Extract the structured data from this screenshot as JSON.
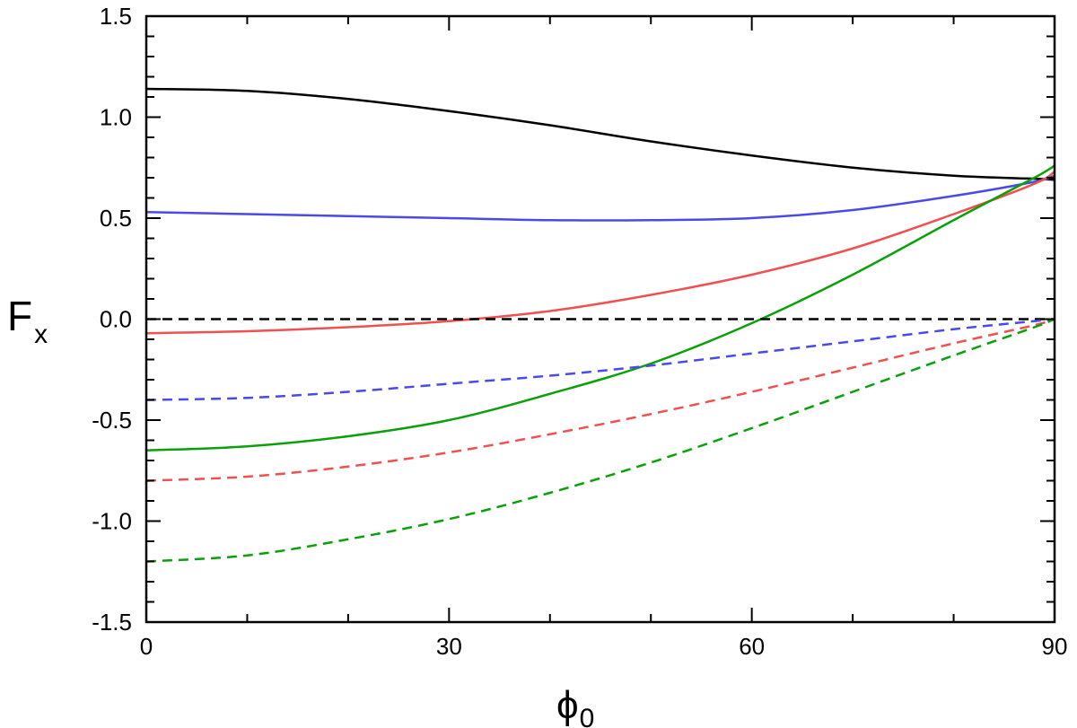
{
  "chart_data": {
    "type": "line",
    "title": "",
    "xlabel": "ϕ",
    "xlabel_sub": "0",
    "ylabel": "F",
    "ylabel_sub": "x",
    "xlim": [
      0,
      90
    ],
    "ylim": [
      -1.5,
      1.5
    ],
    "xticks": [
      0,
      30,
      60,
      90
    ],
    "xtick_labels": [
      "0",
      "30",
      "60",
      "90"
    ],
    "yticks": [
      -1.5,
      -1.0,
      -0.5,
      0.0,
      0.5,
      1.0,
      1.5
    ],
    "ytick_labels": [
      "-1.5",
      "-1.0",
      "-0.5",
      "0.0",
      "0.5",
      "1.0",
      "1.5"
    ],
    "grid": false,
    "x": [
      0,
      10,
      20,
      30,
      40,
      50,
      60,
      70,
      80,
      88,
      90
    ],
    "series": [
      {
        "color": "#000000",
        "style": "solid",
        "values": [
          1.14,
          1.13,
          1.09,
          1.03,
          0.96,
          0.88,
          0.81,
          0.75,
          0.71,
          0.695,
          0.69
        ]
      },
      {
        "color": "#4a4ae8",
        "style": "solid",
        "values": [
          0.53,
          0.52,
          0.51,
          0.5,
          0.49,
          0.49,
          0.5,
          0.54,
          0.61,
          0.68,
          0.71
        ]
      },
      {
        "color": "#f05050",
        "style": "solid",
        "values": [
          -0.07,
          -0.06,
          -0.04,
          -0.01,
          0.04,
          0.12,
          0.22,
          0.35,
          0.52,
          0.67,
          0.73
        ]
      },
      {
        "color": "#0aa00a",
        "style": "solid",
        "values": [
          -0.65,
          -0.63,
          -0.58,
          -0.5,
          -0.37,
          -0.22,
          -0.02,
          0.22,
          0.49,
          0.7,
          0.76
        ]
      },
      {
        "color": "#000000",
        "style": "dashed",
        "values": [
          0.0,
          0.0,
          0.0,
          0.0,
          0.0,
          0.0,
          0.0,
          0.0,
          0.0,
          0.0,
          0.0
        ]
      },
      {
        "color": "#4a4ae8",
        "style": "dashed",
        "values": [
          -0.4,
          -0.39,
          -0.36,
          -0.32,
          -0.28,
          -0.23,
          -0.17,
          -0.11,
          -0.05,
          -0.01,
          0.0
        ]
      },
      {
        "color": "#f05050",
        "style": "dashed",
        "values": [
          -0.8,
          -0.78,
          -0.73,
          -0.66,
          -0.57,
          -0.47,
          -0.36,
          -0.24,
          -0.12,
          -0.03,
          0.0
        ]
      },
      {
        "color": "#0aa00a",
        "style": "dashed",
        "values": [
          -1.2,
          -1.17,
          -1.09,
          -0.99,
          -0.86,
          -0.71,
          -0.54,
          -0.36,
          -0.18,
          -0.04,
          0.0
        ]
      }
    ]
  }
}
